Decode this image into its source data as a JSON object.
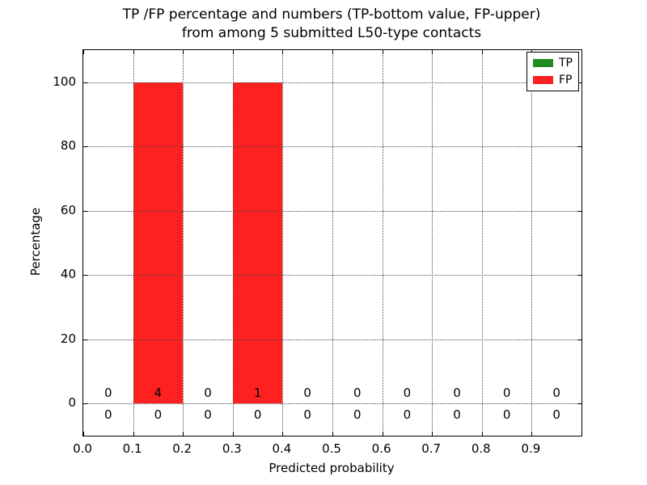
{
  "chart_data": {
    "type": "bar",
    "stacked": true,
    "title_line1": "TP /FP percentage and numbers (TP-bottom value, FP-upper)",
    "title_line2": "from among 5 submitted L50-type contacts",
    "xlabel": "Predicted probability",
    "ylabel": "Percentage",
    "xlim": [
      0.0,
      1.0
    ],
    "ylim": [
      -10,
      110
    ],
    "xticks": [
      {
        "value": 0.0,
        "label": "0.0"
      },
      {
        "value": 0.1,
        "label": "0.1"
      },
      {
        "value": 0.2,
        "label": "0.2"
      },
      {
        "value": 0.3,
        "label": "0.3"
      },
      {
        "value": 0.4,
        "label": "0.4"
      },
      {
        "value": 0.5,
        "label": "0.5"
      },
      {
        "value": 0.6,
        "label": "0.6"
      },
      {
        "value": 0.7,
        "label": "0.7"
      },
      {
        "value": 0.8,
        "label": "0.8"
      },
      {
        "value": 0.9,
        "label": "0.9"
      }
    ],
    "yticks": [
      {
        "value": 0,
        "label": "0"
      },
      {
        "value": 20,
        "label": "20"
      },
      {
        "value": 40,
        "label": "40"
      },
      {
        "value": 60,
        "label": "60"
      },
      {
        "value": 80,
        "label": "80"
      },
      {
        "value": 100,
        "label": "100"
      }
    ],
    "bin_edges": [
      0.0,
      0.1,
      0.2,
      0.3,
      0.4,
      0.5,
      0.6,
      0.7,
      0.8,
      0.9,
      1.0
    ],
    "bin_centers": [
      0.05,
      0.15,
      0.25,
      0.35,
      0.45,
      0.55,
      0.65,
      0.75,
      0.85,
      0.95
    ],
    "series": [
      {
        "name": "TP",
        "color": "#228b22",
        "percentages": [
          0,
          0,
          0,
          0,
          0,
          0,
          0,
          0,
          0,
          0
        ],
        "counts": [
          "0",
          "0",
          "0",
          "0",
          "0",
          "0",
          "0",
          "0",
          "0",
          "0"
        ]
      },
      {
        "name": "FP",
        "color": "#ff2020",
        "percentages": [
          0,
          100,
          0,
          100,
          0,
          0,
          0,
          0,
          0,
          0
        ],
        "counts": [
          "0",
          "4",
          "0",
          "1",
          "0",
          "0",
          "0",
          "0",
          "0",
          "0"
        ]
      }
    ],
    "count_label_rows": {
      "fp_y": 3.3,
      "tp_y": -3.5
    },
    "legend": {
      "position": "upper right",
      "entries": [
        {
          "label": "TP",
          "color": "#228b22"
        },
        {
          "label": "FP",
          "color": "#ff2020"
        }
      ]
    },
    "grid": {
      "on": true,
      "linestyle": "dotted",
      "color": "#4a4a4a"
    }
  }
}
